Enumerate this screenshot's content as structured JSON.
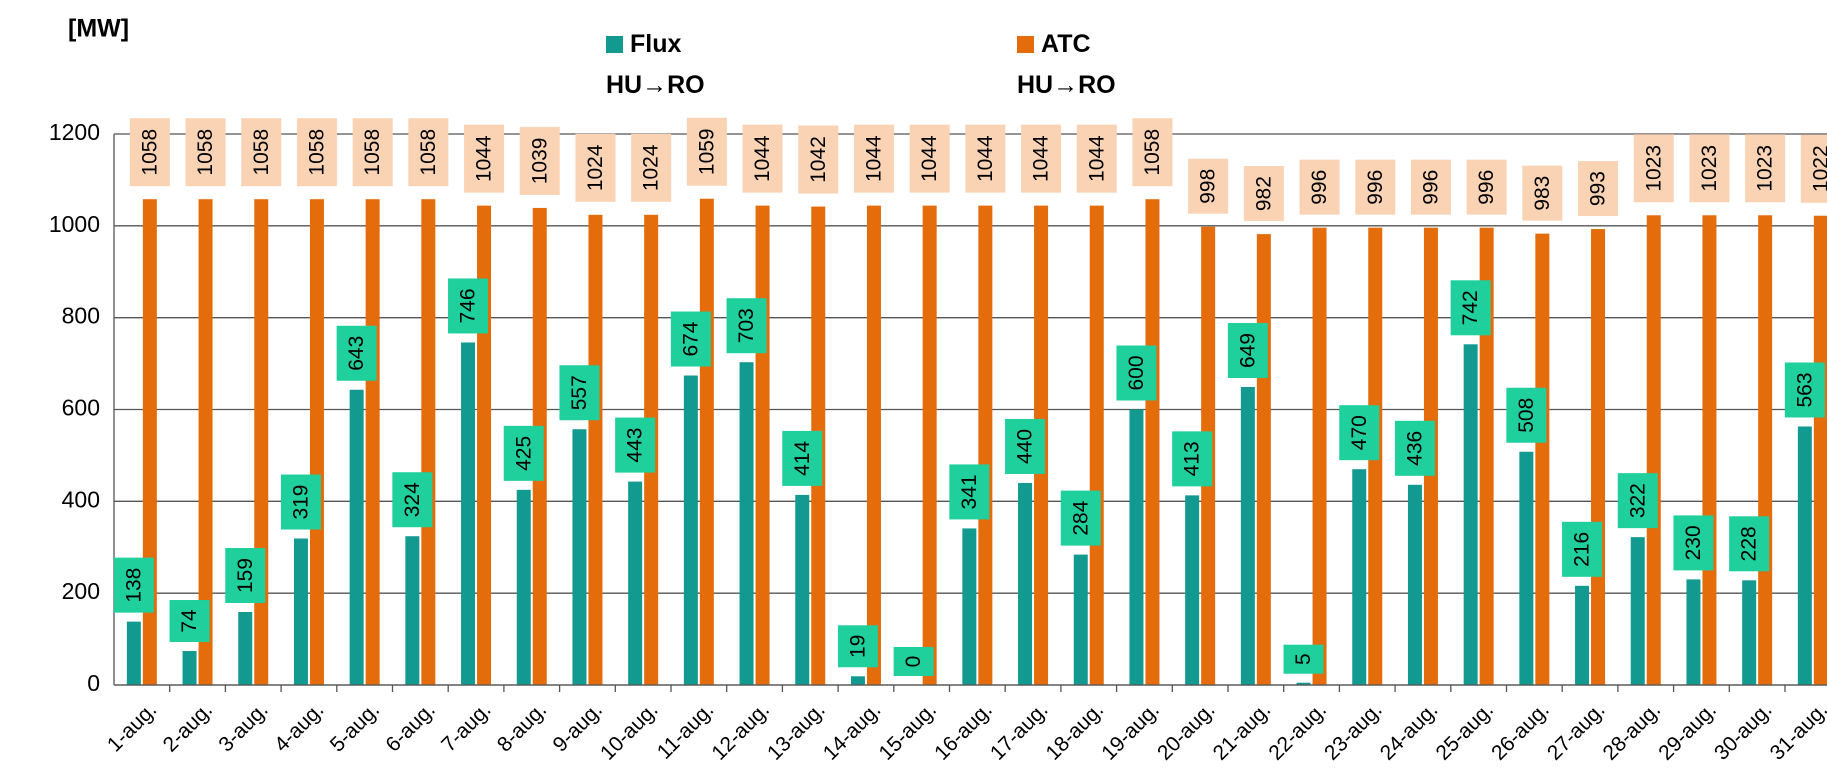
{
  "chart_data": {
    "type": "bar",
    "title": "[MW]",
    "categories": [
      "1-aug.",
      "2-aug.",
      "3-aug.",
      "4-aug.",
      "5-aug.",
      "6-aug.",
      "7-aug.",
      "8-aug.",
      "9-aug.",
      "10-aug.",
      "11-aug.",
      "12-aug.",
      "13-aug.",
      "14-aug.",
      "15-aug.",
      "16-aug.",
      "17-aug.",
      "18-aug.",
      "19-aug.",
      "20-aug.",
      "21-aug.",
      "22-aug.",
      "23-aug.",
      "24-aug.",
      "25-aug.",
      "26-aug.",
      "27-aug.",
      "28-aug.",
      "29-aug.",
      "30-aug.",
      "31-aug."
    ],
    "series": [
      {
        "name": "Flux HU→RO",
        "color": "#139a90",
        "label_color": "#1fcf9c",
        "values": [
          138,
          74,
          159,
          319,
          643,
          324,
          746,
          425,
          557,
          443,
          674,
          703,
          414,
          19,
          0,
          341,
          440,
          284,
          600,
          413,
          649,
          5,
          470,
          436,
          742,
          508,
          216,
          322,
          230,
          228,
          563
        ]
      },
      {
        "name": "ATC HU→RO",
        "color": "#e46c0a",
        "label_color": "#fad3b4",
        "values": [
          1058,
          1058,
          1058,
          1058,
          1058,
          1058,
          1044,
          1039,
          1024,
          1024,
          1059,
          1044,
          1042,
          1044,
          1044,
          1044,
          1044,
          1044,
          1058,
          998,
          982,
          996,
          996,
          996,
          996,
          983,
          993,
          1023,
          1023,
          1023,
          1022
        ]
      }
    ],
    "ylim": [
      0,
      1200
    ],
    "yticks": [
      0,
      200,
      400,
      600,
      800,
      1000,
      1200
    ],
    "grid": true
  }
}
